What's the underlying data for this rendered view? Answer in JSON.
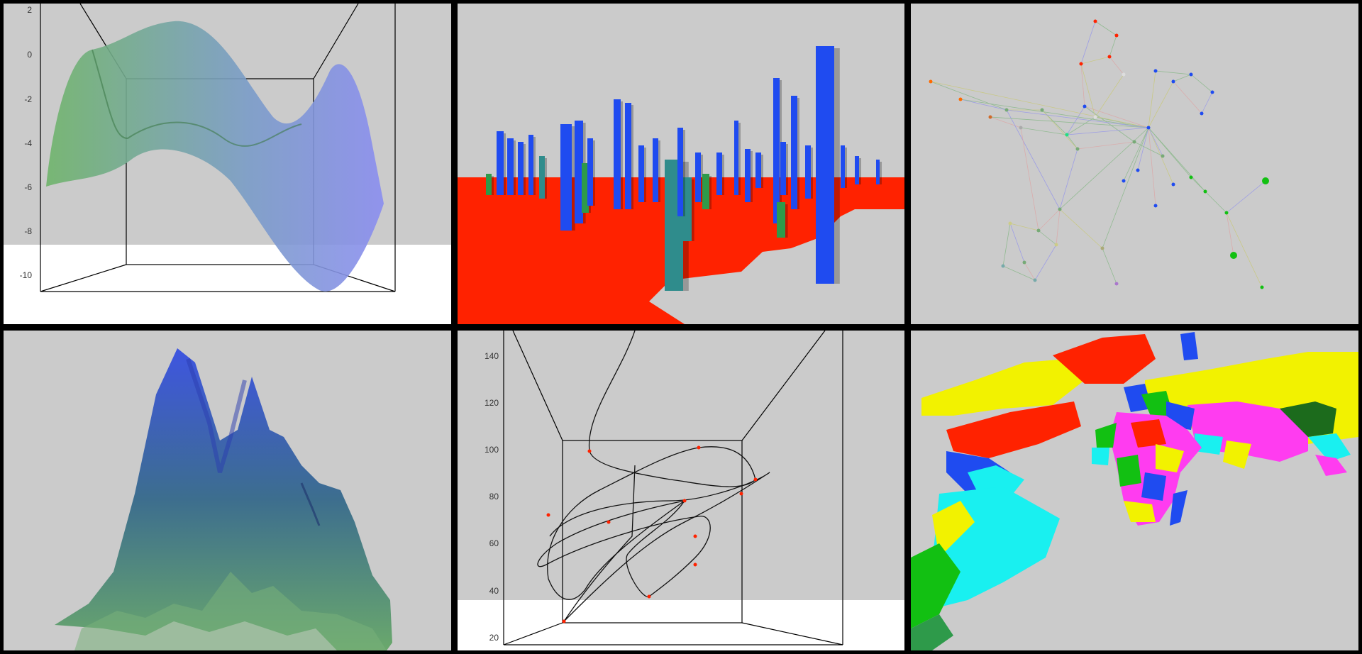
{
  "colors": {
    "background": "#cbcbcb",
    "floor": "#ffffff",
    "frame": "#000000",
    "red": "#ff2200",
    "blue": "#1f4bf0",
    "green": "#2e9a4a",
    "teal": "#2f8c8c",
    "yellow": "#f2f200",
    "cyan": "#19f0f0",
    "magenta": "#ff3cf0"
  },
  "panels": [
    {
      "name": "surface-plot",
      "y_ticks": [
        "2",
        "0",
        "-2",
        "-4",
        "-6",
        "-8",
        "-10"
      ]
    },
    {
      "name": "bar-city-on-map"
    },
    {
      "name": "network-graph"
    },
    {
      "name": "terrain-surface"
    },
    {
      "name": "curve-plot",
      "y_ticks": [
        "140",
        "120",
        "100",
        "80",
        "60",
        "40",
        "20"
      ]
    },
    {
      "name": "extruded-world-map"
    }
  ]
}
